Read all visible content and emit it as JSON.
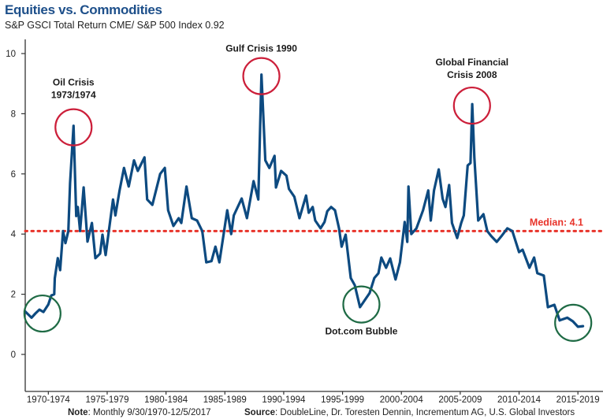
{
  "chart_data": {
    "type": "line",
    "title": "Equities vs. Commodities",
    "subtitle": "S&P GSCI Total Return CME/ S&P 500 Index 0.92",
    "xlabel": "",
    "ylabel": "",
    "ylim": [
      0,
      10.5
    ],
    "xlim": [
      1970,
      2019.5
    ],
    "yticks": [
      0,
      2,
      4,
      6,
      8,
      10
    ],
    "xtick_labels": [
      "1970-1974",
      "1975-1979",
      "1980-1984",
      "1985-1989",
      "1990-1994",
      "1995-1999",
      "2000-2004",
      "2005-2009",
      "2010-2014",
      "2015-2019"
    ],
    "grid": false,
    "series": [
      {
        "name": "S&P GSCI TR / S&P 500",
        "color": "#0d4a80",
        "x": [
          1970.5,
          1971.07,
          1971.4,
          1971.74,
          1972.08,
          1972.5,
          1972.75,
          1973.0,
          1973.05,
          1973.3,
          1973.5,
          1973.75,
          1973.95,
          1974.2,
          1974.35,
          1974.64,
          1974.87,
          1975.0,
          1975.2,
          1975.5,
          1975.83,
          1976.2,
          1976.5,
          1976.9,
          1977.1,
          1977.37,
          1978.0,
          1978.2,
          1978.55,
          1978.93,
          1979.33,
          1979.78,
          1980.1,
          1980.67,
          1980.9,
          1981.34,
          1982.0,
          1982.4,
          1982.68,
          1983.13,
          1983.58,
          1983.8,
          1984.24,
          1984.69,
          1985.14,
          1985.58,
          1985.92,
          1986.36,
          1986.7,
          1987.03,
          1987.7,
          1988.04,
          1988.26,
          1988.93,
          1989.38,
          1989.94,
          1990.34,
          1990.61,
          1990.94,
          1991.28,
          1991.72,
          1991.84,
          1992.28,
          1992.73,
          1992.95,
          1993.4,
          1993.84,
          1994.4,
          1994.63,
          1994.96,
          1995.18,
          1995.63,
          1995.97,
          1996.2,
          1996.53,
          1996.86,
          1997.2,
          1997.42,
          1997.76,
          1998.2,
          1998.54,
          1998.98,
          1999.3,
          1999.8,
          2000.2,
          2000.55,
          2000.8,
          2001.2,
          2001.55,
          2002.0,
          2002.38,
          2002.78,
          2003.0,
          2003.1,
          2003.34,
          2003.78,
          2004.34,
          2004.78,
          2005.0,
          2005.27,
          2005.67,
          2006.0,
          2006.24,
          2006.56,
          2006.8,
          2007.24,
          2007.58,
          2007.8,
          2008.13,
          2008.37,
          2008.52,
          2008.7,
          2009.03,
          2009.47,
          2009.8,
          2010.14,
          2010.6,
          2011.0,
          2011.5,
          2011.93,
          2012.5,
          2012.8,
          2013.38,
          2013.78,
          2014.05,
          2014.6,
          2014.95,
          2015.5,
          2015.95,
          2016.6,
          2017.07,
          2017.5,
          2017.93
        ],
        "y": [
          1.44,
          1.22,
          1.36,
          1.49,
          1.41,
          1.66,
          1.96,
          2.0,
          2.53,
          3.2,
          2.8,
          4.1,
          3.7,
          4.1,
          5.7,
          7.6,
          4.6,
          4.9,
          4.1,
          5.55,
          3.75,
          4.37,
          3.2,
          3.35,
          3.98,
          3.3,
          5.15,
          4.62,
          5.45,
          6.2,
          5.58,
          6.45,
          6.1,
          6.55,
          5.15,
          4.97,
          6.0,
          6.2,
          4.79,
          4.27,
          4.53,
          4.37,
          5.58,
          4.53,
          4.45,
          4.1,
          3.06,
          3.1,
          3.58,
          3.06,
          4.79,
          4.0,
          4.62,
          5.18,
          4.53,
          5.76,
          5.15,
          9.3,
          6.45,
          6.2,
          6.6,
          5.55,
          6.1,
          5.94,
          5.5,
          5.24,
          4.53,
          5.28,
          4.71,
          4.9,
          4.45,
          4.19,
          4.4,
          4.76,
          4.9,
          4.79,
          4.19,
          3.58,
          3.98,
          2.54,
          2.3,
          1.57,
          1.75,
          2.04,
          2.54,
          2.7,
          3.22,
          2.88,
          3.19,
          2.49,
          3.06,
          4.4,
          3.74,
          5.58,
          4.0,
          4.19,
          4.79,
          5.45,
          4.45,
          5.45,
          6.15,
          5.18,
          4.9,
          5.63,
          4.37,
          3.87,
          4.37,
          4.62,
          6.28,
          6.36,
          8.32,
          6.54,
          4.45,
          4.66,
          4.1,
          3.93,
          3.74,
          3.93,
          4.19,
          4.1,
          3.4,
          3.48,
          2.88,
          3.22,
          2.7,
          2.62,
          1.57,
          1.65,
          1.13,
          1.22,
          1.1,
          0.92,
          0.94
        ]
      }
    ],
    "reference_line": {
      "label": "Median: 4.1",
      "value": 4.1,
      "color": "#e8332a"
    },
    "annotations": [
      {
        "lines": [
          "Oil Crisis",
          "1973/1974"
        ],
        "x": 1974.64,
        "y": 7.55,
        "type": "peak",
        "color": "#cc1f3a"
      },
      {
        "lines": [
          "Gulf Crisis 1990"
        ],
        "x": 1990.6,
        "y": 9.25,
        "type": "peak",
        "color": "#cc1f3a"
      },
      {
        "lines": [
          "Global Financial",
          "Crisis 2008"
        ],
        "x": 2008.5,
        "y": 8.27,
        "type": "peak",
        "color": "#cc1f3a"
      },
      {
        "lines": [
          "Dot.com Bubble"
        ],
        "x": 1999.1,
        "y": 1.66,
        "type": "trough",
        "color": "#1f6b45"
      },
      {
        "lines": [],
        "x": 1972.0,
        "y": 1.36,
        "type": "trough",
        "color": "#1f6b45"
      },
      {
        "lines": [],
        "x": 2017.1,
        "y": 1.05,
        "type": "trough",
        "color": "#1f6b45"
      }
    ]
  },
  "footer": {
    "note_label": "Note",
    "note_text": ": Monthly 9/30/1970-12/5/2017",
    "source_label": "Source",
    "source_text": ": DoubleLine, Dr. Toresten Dennin, Incrementum AG, U.S. Global Investors"
  }
}
